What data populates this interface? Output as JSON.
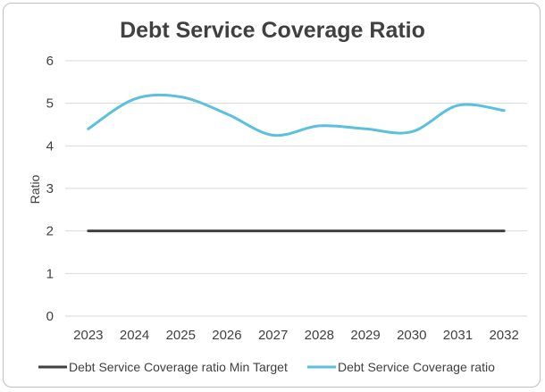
{
  "chart_data": {
    "type": "line",
    "title": "Debt Service Coverage Ratio",
    "xlabel": "",
    "ylabel": "Ratio",
    "categories": [
      "2023",
      "2024",
      "2025",
      "2026",
      "2027",
      "2028",
      "2029",
      "2030",
      "2031",
      "2032"
    ],
    "ylim": [
      0,
      6
    ],
    "yticks": [
      "0",
      "1",
      "2",
      "3",
      "4",
      "5",
      "6"
    ],
    "grid": true,
    "legend_position": "bottom",
    "series": [
      {
        "name": "Debt Service Coverage ratio Min Target",
        "values": [
          2,
          2,
          2,
          2,
          2,
          2,
          2,
          2,
          2,
          2
        ],
        "color": "#404040",
        "smooth": false
      },
      {
        "name": "Debt Service Coverage ratio",
        "values": [
          4.4,
          5.1,
          5.15,
          4.75,
          4.25,
          4.47,
          4.4,
          4.33,
          4.95,
          4.83
        ],
        "color": "#5bc0de",
        "smooth": true
      }
    ]
  }
}
